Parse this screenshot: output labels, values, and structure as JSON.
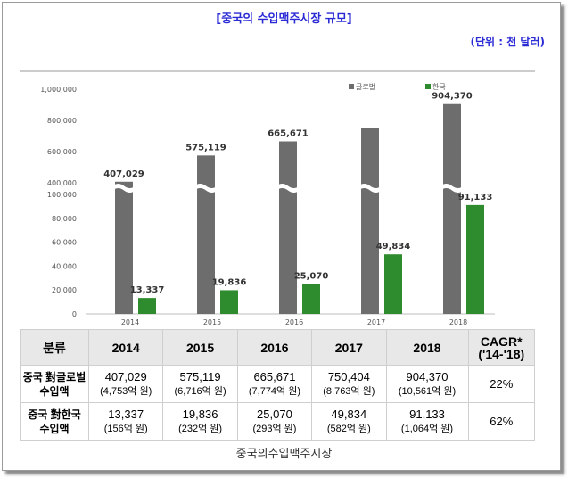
{
  "title": "[중국의 수입맥주시장 규모]",
  "unit": "(단위 : 천 달러)",
  "chart_data": {
    "type": "bar",
    "categories": [
      "2014",
      "2015",
      "2016",
      "2017",
      "2018"
    ],
    "series": [
      {
        "name": "글로벌",
        "color": "#6d6d6d",
        "values": [
          407029,
          575119,
          665671,
          750404,
          904370
        ]
      },
      {
        "name": "한국",
        "color": "#2e8b2e",
        "values": [
          13337,
          19836,
          25070,
          49834,
          91133
        ]
      }
    ],
    "data_labels": {
      "글로벌": [
        "407,029",
        "575,119",
        "665,671",
        "",
        "904,370"
      ],
      "한국": [
        "13,337",
        "19,836",
        "25,070",
        "49,834",
        "91,133"
      ]
    },
    "y_ticks_lower": [
      "0",
      "20,000",
      "40,000",
      "60,000",
      "80,000",
      "100,000"
    ],
    "y_tick_values_lower": [
      0,
      20000,
      40000,
      60000,
      80000,
      100000
    ],
    "y_ticks_upper": [
      "400,000",
      "600,000",
      "800,000",
      "1,000,000"
    ],
    "y_tick_values_upper": [
      400000,
      600000,
      800000,
      1000000
    ],
    "axis_break": [
      100000,
      400000
    ],
    "ylim": [
      0,
      1000000
    ],
    "legend_position": "top-right"
  },
  "table": {
    "headers": [
      "분류",
      "2014",
      "2015",
      "2016",
      "2017",
      "2018",
      "CAGR*",
      "('14-'18)"
    ],
    "rows": [
      {
        "label1": "중국 對글로벌",
        "label2": "수입액",
        "values": [
          "407,029",
          "575,119",
          "665,671",
          "750,404",
          "904,370"
        ],
        "won": [
          "(4,753억 원)",
          "(6,716억 원)",
          "(7,774억 원)",
          "(8,763억 원)",
          "(10,561억 원)"
        ],
        "cagr": "22%"
      },
      {
        "label1": "중국 對한국",
        "label2": "수입액",
        "values": [
          "13,337",
          "19,836",
          "25,070",
          "49,834",
          "91,133"
        ],
        "won": [
          "(156억 원)",
          "(232억 원)",
          "(293억 원)",
          "(582억 원)",
          "(1,064억 원)"
        ],
        "cagr": "62%"
      }
    ]
  },
  "caption": "중국의수입맥주시장"
}
